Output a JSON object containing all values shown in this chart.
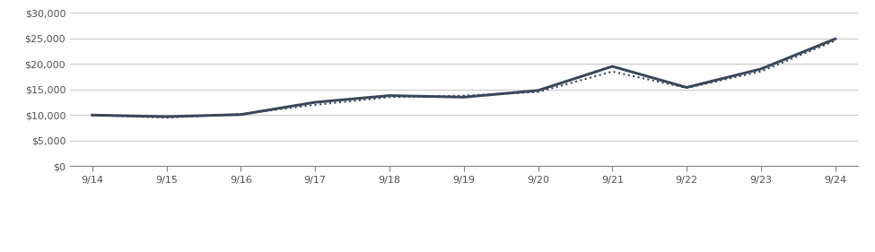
{
  "x_labels": [
    "9/14",
    "9/15",
    "9/16",
    "9/17",
    "9/18",
    "9/19",
    "9/20",
    "9/21",
    "9/22",
    "9/23",
    "9/24"
  ],
  "x_positions": [
    0,
    1,
    2,
    3,
    4,
    5,
    6,
    7,
    8,
    9,
    10
  ],
  "fund_values": [
    10000,
    9700,
    10100,
    12500,
    13800,
    13500,
    14800,
    19500,
    15400,
    19000,
    24869
  ],
  "index_values": [
    10000,
    9500,
    10200,
    12000,
    13500,
    13800,
    14500,
    18500,
    15300,
    18500,
    24526
  ],
  "fund_color": "#3d4a5c",
  "index_color": "#3d4a5c",
  "ylim": [
    0,
    30000
  ],
  "yticks": [
    0,
    5000,
    10000,
    15000,
    20000,
    25000,
    30000
  ],
  "background_color": "#ffffff",
  "grid_color": "#cccccc",
  "line_color": "#888888"
}
